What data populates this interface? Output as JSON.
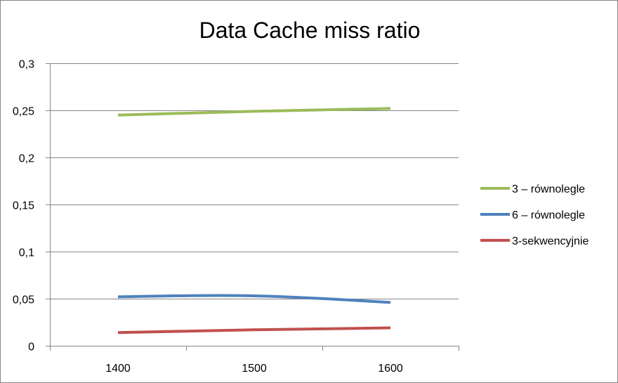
{
  "chart_data": {
    "type": "line",
    "title": "Data Cache miss ratio",
    "xlabel": "",
    "ylabel": "",
    "categories": [
      "1400",
      "1500",
      "1600"
    ],
    "ylim": [
      0,
      0.3
    ],
    "yticks": [
      0,
      0.05,
      0.1,
      0.15,
      0.2,
      0.25,
      0.3
    ],
    "ytick_labels": [
      "0",
      "0,05",
      "0,1",
      "0,15",
      "0,2",
      "0,25",
      "0,3"
    ],
    "grid": true,
    "legend_position": "right",
    "series": [
      {
        "name": "3 – równolegle",
        "values": [
          0.245,
          0.249,
          0.252
        ],
        "color": "#9BBB59"
      },
      {
        "name": "6 – równolegle",
        "values": [
          0.052,
          0.053,
          0.046
        ],
        "color": "#4F81BD"
      },
      {
        "name": "3-sekwencyjnie",
        "values": [
          0.014,
          0.017,
          0.019
        ],
        "color": "#C0504D"
      }
    ]
  }
}
